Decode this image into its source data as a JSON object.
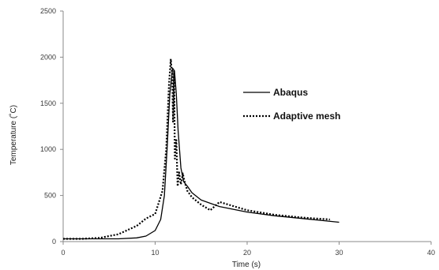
{
  "chart_data": {
    "type": "line",
    "xlabel": "Time (s)",
    "ylabel": "Temperature (˚C)",
    "xlim": [
      0,
      40
    ],
    "ylim": [
      0,
      2500
    ],
    "x_ticks": [
      "0",
      "10",
      "20",
      "30",
      "40"
    ],
    "y_ticks": [
      "0",
      "500",
      "1000",
      "1500",
      "2000",
      "2500"
    ],
    "grid": false,
    "legend_position": "right",
    "series": [
      {
        "name": "Abaqus",
        "style": "solid",
        "color": "#000000",
        "points": [
          [
            0,
            30
          ],
          [
            2,
            30
          ],
          [
            4,
            30
          ],
          [
            6,
            30
          ],
          [
            8,
            40
          ],
          [
            9,
            60
          ],
          [
            10,
            120
          ],
          [
            10.6,
            240
          ],
          [
            11.0,
            500
          ],
          [
            11.3,
            1000
          ],
          [
            11.6,
            1600
          ],
          [
            11.9,
            1880
          ],
          [
            12.1,
            1850
          ],
          [
            12.3,
            1600
          ],
          [
            12.5,
            1200
          ],
          [
            12.8,
            800
          ],
          [
            13.1,
            650
          ],
          [
            13.5,
            600
          ],
          [
            14,
            530
          ],
          [
            15,
            450
          ],
          [
            17,
            380
          ],
          [
            20,
            320
          ],
          [
            23,
            280
          ],
          [
            26,
            250
          ],
          [
            28,
            230
          ],
          [
            30,
            210
          ]
        ]
      },
      {
        "name": "Adaptive mesh",
        "style": "dotted",
        "color": "#000000",
        "points": [
          [
            0,
            30
          ],
          [
            2,
            30
          ],
          [
            4,
            40
          ],
          [
            6,
            80
          ],
          [
            8,
            170
          ],
          [
            9,
            250
          ],
          [
            10,
            300
          ],
          [
            10.8,
            550
          ],
          [
            11.2,
            1000
          ],
          [
            11.5,
            1700
          ],
          [
            11.7,
            1980
          ],
          [
            11.85,
            1800
          ],
          [
            11.95,
            1300
          ],
          [
            12.05,
            1850
          ],
          [
            12.15,
            900
          ],
          [
            12.3,
            1100
          ],
          [
            12.45,
            600
          ],
          [
            12.6,
            750
          ],
          [
            12.8,
            620
          ],
          [
            13.0,
            740
          ],
          [
            13.2,
            650
          ],
          [
            13.5,
            550
          ],
          [
            14,
            480
          ],
          [
            15,
            400
          ],
          [
            16,
            340
          ],
          [
            17,
            430
          ],
          [
            18,
            400
          ],
          [
            20,
            340
          ],
          [
            23,
            290
          ],
          [
            26,
            260
          ],
          [
            29,
            240
          ]
        ]
      }
    ]
  }
}
